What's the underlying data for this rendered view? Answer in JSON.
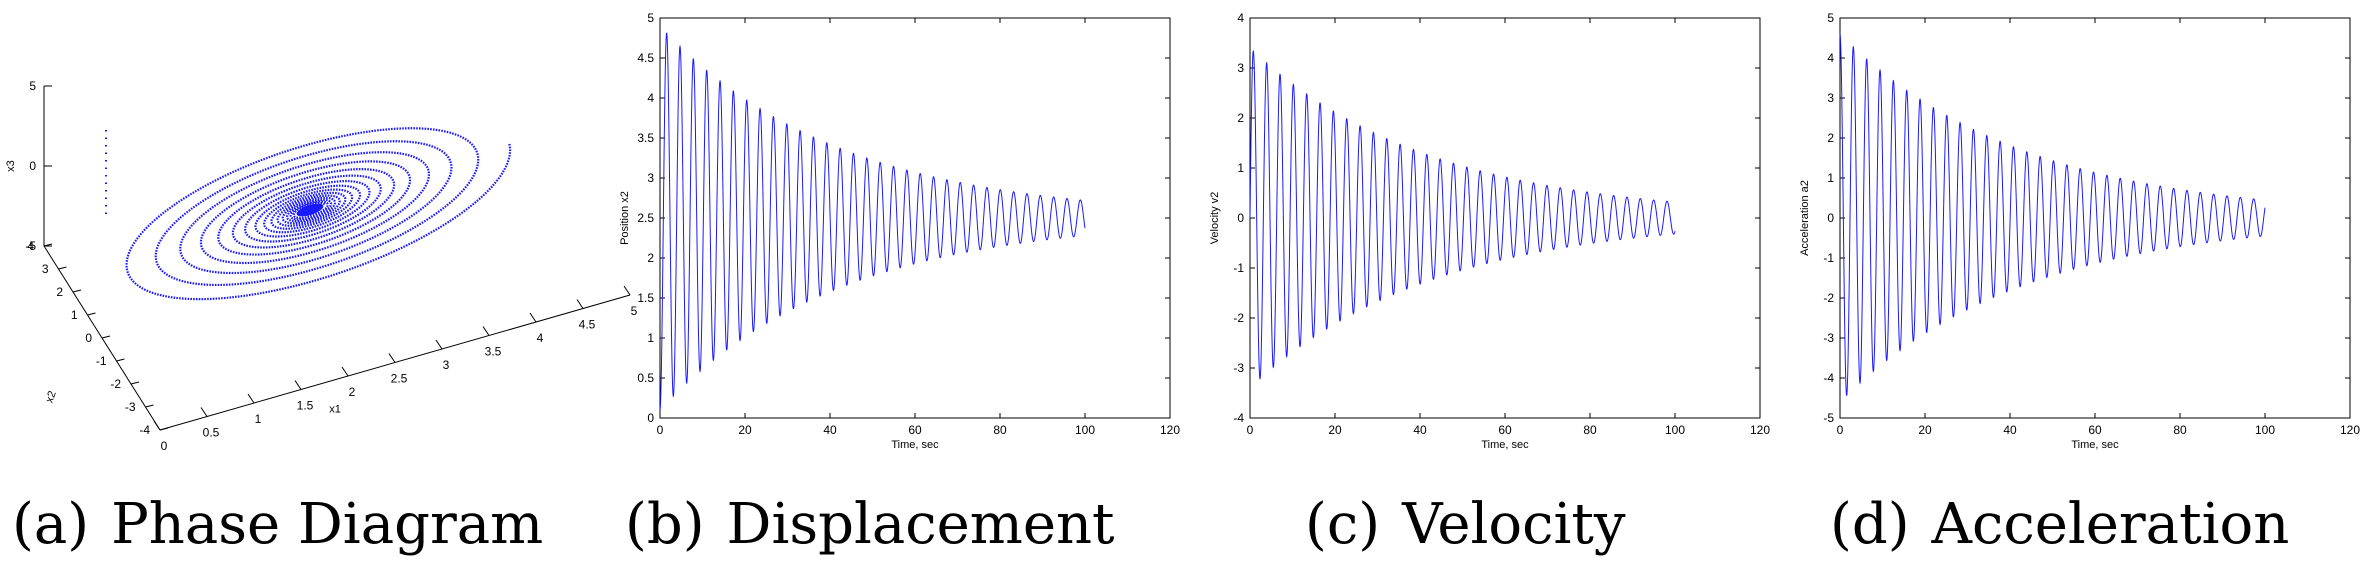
{
  "captions": [
    {
      "label": "(a)",
      "text": "Phase Diagram"
    },
    {
      "label": "(b)",
      "text": "Displacement"
    },
    {
      "label": "(c)",
      "text": "Velocity"
    },
    {
      "label": "(d)",
      "text": "Acceleration"
    }
  ],
  "chart_data": [
    {
      "type": "line",
      "id": "phase",
      "xlabel": "x1",
      "ylabel": "x2",
      "zlabel": "x3",
      "xlim": [
        0,
        5
      ],
      "ylim": [
        -4,
        4
      ],
      "zlim": [
        -5,
        5
      ],
      "x_ticks": [
        "0",
        "0.5",
        "1",
        "1.5",
        "2",
        "2.5",
        "3",
        "3.5",
        "4",
        "4.5",
        "5"
      ],
      "y_ticks": [
        "4",
        "3",
        "2",
        "1",
        "0",
        "-1",
        "-2",
        "-3",
        "-4"
      ],
      "z_ticks": [
        "5",
        "0",
        "-5"
      ],
      "series_color": "#1a1aff",
      "description_values": {
        "start": [
          0,
          0,
          0
        ],
        "center": [
          2.5,
          0,
          0
        ],
        "outer_x_range": [
          0.3,
          4.7
        ]
      }
    },
    {
      "type": "line",
      "id": "displacement",
      "xlabel": "Time, sec",
      "ylabel": "Position x2",
      "xlim": [
        0,
        120
      ],
      "ylim": [
        0,
        5
      ],
      "x_ticks": [
        "0",
        "20",
        "40",
        "60",
        "80",
        "100",
        "120"
      ],
      "y_ticks": [
        "0",
        "0.5",
        "1",
        "1.5",
        "2",
        "2.5",
        "3",
        "3.5",
        "4",
        "4.5",
        "5"
      ],
      "series_color": "#1a1aff",
      "t_end": 100,
      "mean": 2.5,
      "amplitude0": 2.4,
      "amplitude_end": 0.22,
      "period": 3.14
    },
    {
      "type": "line",
      "id": "velocity",
      "xlabel": "Time, sec",
      "ylabel": "Velocity v2",
      "xlim": [
        0,
        120
      ],
      "ylim": [
        -4,
        4
      ],
      "x_ticks": [
        "0",
        "20",
        "40",
        "60",
        "80",
        "100",
        "120"
      ],
      "y_ticks": [
        "4",
        "3",
        "2",
        "1",
        "0",
        "-1",
        "-2",
        "-3",
        "-4"
      ],
      "series_color": "#1a1aff",
      "t_end": 100,
      "mean": 0,
      "amplitude0": 3.4,
      "amplitude_end": 0.32,
      "period": 3.14
    },
    {
      "type": "line",
      "id": "acceleration",
      "xlabel": "Time, sec",
      "ylabel": "Acceleration a2",
      "xlim": [
        0,
        120
      ],
      "ylim": [
        -5,
        5
      ],
      "x_ticks": [
        "0",
        "20",
        "40",
        "60",
        "80",
        "100",
        "120"
      ],
      "y_ticks": [
        "5",
        "4",
        "3",
        "2",
        "1",
        "0",
        "-1",
        "-2",
        "-3",
        "-4",
        "-5"
      ],
      "series_color": "#1a1aff",
      "t_end": 100,
      "mean": 0,
      "amplitude0": 4.6,
      "amplitude_end": 0.45,
      "period": 3.14
    }
  ]
}
